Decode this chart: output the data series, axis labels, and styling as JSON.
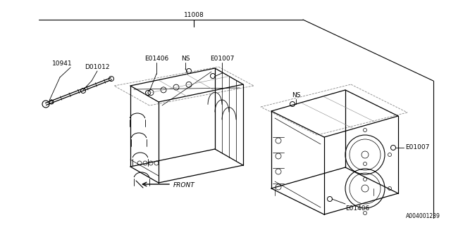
{
  "bg_color": "#ffffff",
  "lc": "#000000",
  "dc": "#888888",
  "fig_width": 6.4,
  "fig_height": 3.2,
  "dpi": 100,
  "label_11008": "11008",
  "label_10941": "10941",
  "label_D01012": "D01012",
  "label_E01406_top": "E01406",
  "label_NS_top": "NS",
  "label_E01007_top": "E01007",
  "label_NS_right": "NS",
  "label_E01007_right": "E01007",
  "label_E01406_bot": "E01406",
  "label_FRONT": "FRONT",
  "label_watermark": "A004001239",
  "font_size": 6.0,
  "font_family": "DejaVu Sans"
}
